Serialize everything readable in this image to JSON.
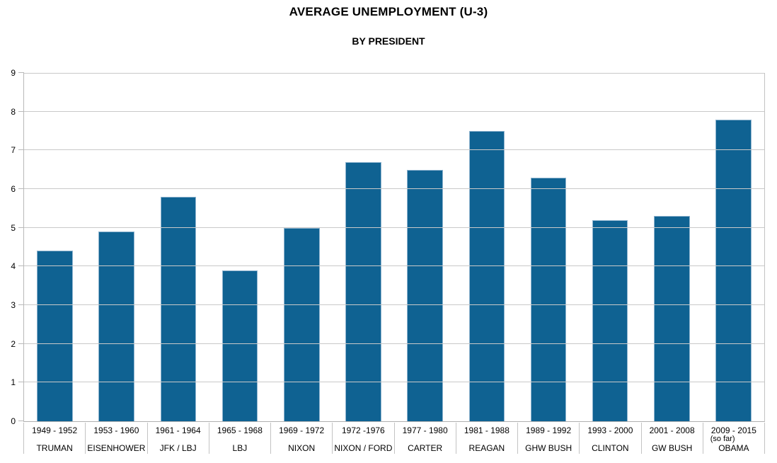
{
  "chart_data": {
    "type": "bar",
    "title": "AVERAGE UNEMPLOYMENT (U-3)",
    "subtitle": "BY PRESIDENT",
    "categories": [
      {
        "years": "1949 - 1952",
        "president": "TRUMAN",
        "note": ""
      },
      {
        "years": "1953 - 1960",
        "president": "EISENHOWER",
        "note": ""
      },
      {
        "years": "1961 - 1964",
        "president": "JFK / LBJ",
        "note": ""
      },
      {
        "years": "1965 - 1968",
        "president": "LBJ",
        "note": ""
      },
      {
        "years": "1969 - 1972",
        "president": "NIXON",
        "note": ""
      },
      {
        "years": "1972 -1976",
        "president": "NIXON / FORD",
        "note": ""
      },
      {
        "years": "1977 - 1980",
        "president": "CARTER",
        "note": ""
      },
      {
        "years": "1981 - 1988",
        "president": "REAGAN",
        "note": ""
      },
      {
        "years": "1989 - 1992",
        "president": "GHW BUSH",
        "note": ""
      },
      {
        "years": "1993 - 2000",
        "president": "CLINTON",
        "note": ""
      },
      {
        "years": "2001 - 2008",
        "president": "GW BUSH",
        "note": ""
      },
      {
        "years": "2009 - 2015",
        "president": "OBAMA",
        "note": "(so far)"
      }
    ],
    "values": [
      4.4,
      4.9,
      5.8,
      3.9,
      5.0,
      6.7,
      6.5,
      7.5,
      6.3,
      5.2,
      5.3,
      7.8
    ],
    "xlabel": "",
    "ylabel": "",
    "ylim": [
      0,
      9
    ],
    "yticks": [
      0,
      1,
      2,
      3,
      4,
      5,
      6,
      7,
      8,
      9
    ],
    "grid": true,
    "legend_position": "none",
    "colors": {
      "bar": "#0f6292",
      "bar_edge": "#8fb4cf",
      "gridline": "#c9c9c9",
      "axis": "#b9b9b9",
      "text": "#000000",
      "background": "#ffffff"
    }
  }
}
